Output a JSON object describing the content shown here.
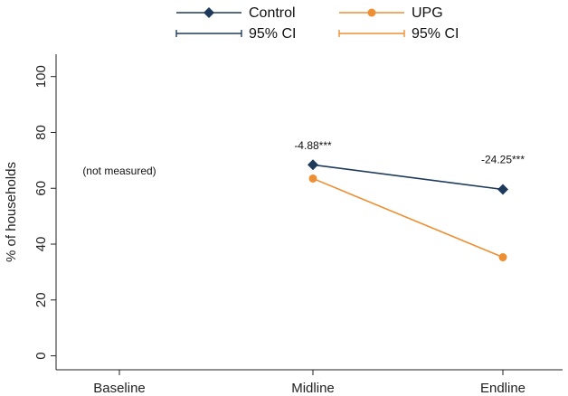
{
  "chart_data": {
    "type": "line",
    "categories": [
      "Baseline",
      "Midline",
      "Endline"
    ],
    "ylabel": "% of households",
    "ylim": [
      -5,
      108
    ],
    "yticks": [
      0,
      20,
      40,
      60,
      80,
      100
    ],
    "grid": false,
    "legend_position": "top",
    "series": [
      {
        "name": "Control",
        "ci_name": "95% CI",
        "color": "#1f3b5c",
        "marker": "diamond",
        "values": [
          null,
          68.4,
          59.6
        ]
      },
      {
        "name": "UPG",
        "ci_name": "95% CI",
        "color": "#ee8f33",
        "marker": "circle",
        "values": [
          null,
          63.5,
          35.3
        ]
      }
    ],
    "annotations": [
      {
        "category": "Baseline",
        "y": 65,
        "text": "(not measured)"
      },
      {
        "category": "Midline",
        "y": 74,
        "text": "-4.88***"
      },
      {
        "category": "Endline",
        "y": 69,
        "text": "-24.25***"
      }
    ]
  }
}
